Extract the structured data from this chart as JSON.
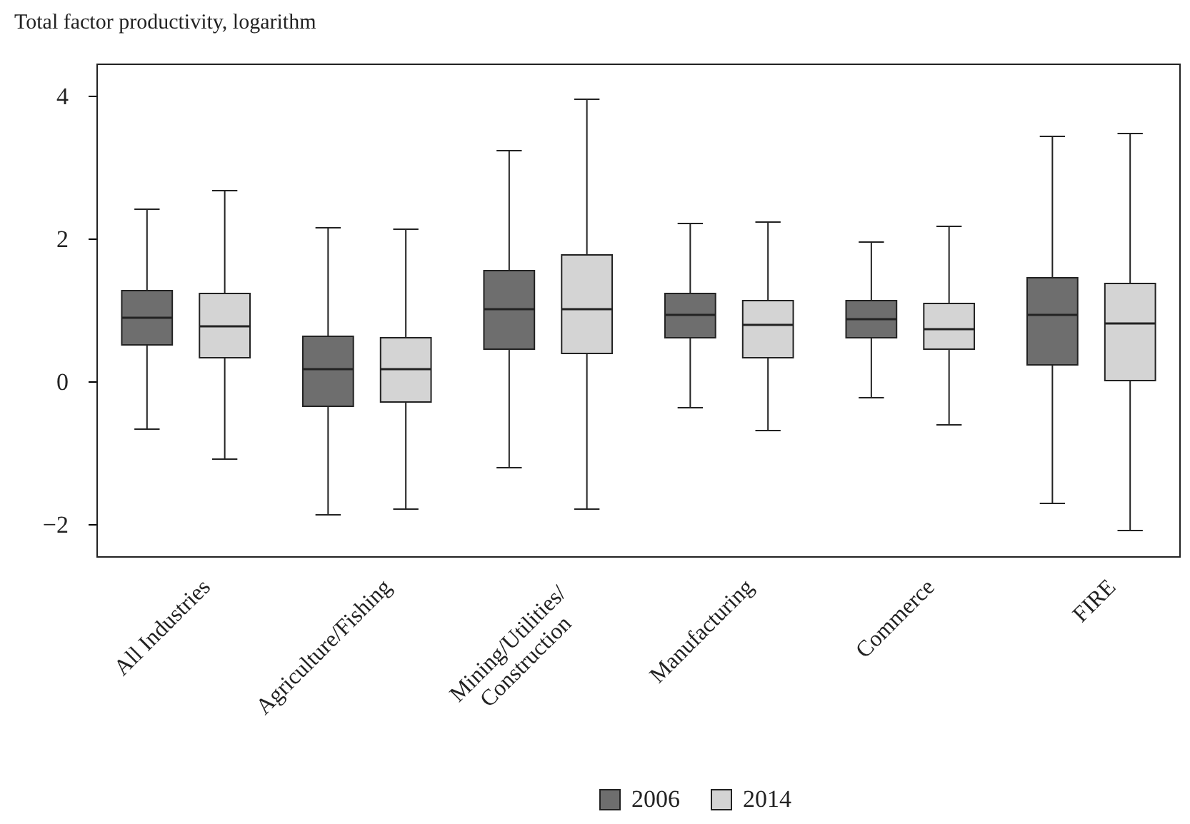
{
  "chart_data": {
    "type": "box",
    "ylabel": "Total factor productivity, logarithm",
    "categories": [
      "All Industries",
      "Agriculture/Fishing",
      "Mining/Utilities/Construction",
      "Manufacturing",
      "Commerce",
      "FIRE"
    ],
    "ylim": [
      -2.45,
      4.45
    ],
    "yticks": [
      {
        "value": -2,
        "label": "−2"
      },
      0,
      2,
      4
    ],
    "grid": false,
    "legend": "bottom",
    "series": [
      {
        "name": "2006",
        "color": "#6e6e6e",
        "boxes": [
          {
            "low": -0.66,
            "q1": 0.52,
            "median": 0.9,
            "q3": 1.28,
            "high": 2.42
          },
          {
            "low": -1.86,
            "q1": -0.34,
            "median": 0.18,
            "q3": 0.64,
            "high": 2.16
          },
          {
            "low": -1.2,
            "q1": 0.46,
            "median": 1.02,
            "q3": 1.56,
            "high": 3.24
          },
          {
            "low": -0.36,
            "q1": 0.62,
            "median": 0.94,
            "q3": 1.24,
            "high": 2.22
          },
          {
            "low": -0.22,
            "q1": 0.62,
            "median": 0.88,
            "q3": 1.14,
            "high": 1.96
          },
          {
            "low": -1.7,
            "q1": 0.24,
            "median": 0.94,
            "q3": 1.46,
            "high": 3.44
          }
        ]
      },
      {
        "name": "2014",
        "color": "#d4d4d4",
        "boxes": [
          {
            "low": -1.08,
            "q1": 0.34,
            "median": 0.78,
            "q3": 1.24,
            "high": 2.68
          },
          {
            "low": -1.78,
            "q1": -0.28,
            "median": 0.18,
            "q3": 0.62,
            "high": 2.14
          },
          {
            "low": -1.78,
            "q1": 0.4,
            "median": 1.02,
            "q3": 1.78,
            "high": 3.96
          },
          {
            "low": -0.68,
            "q1": 0.34,
            "median": 0.8,
            "q3": 1.14,
            "high": 2.24
          },
          {
            "low": -0.6,
            "q1": 0.46,
            "median": 0.74,
            "q3": 1.1,
            "high": 2.18
          },
          {
            "low": -2.08,
            "q1": 0.02,
            "median": 0.82,
            "q3": 1.38,
            "high": 3.48
          }
        ]
      }
    ]
  }
}
